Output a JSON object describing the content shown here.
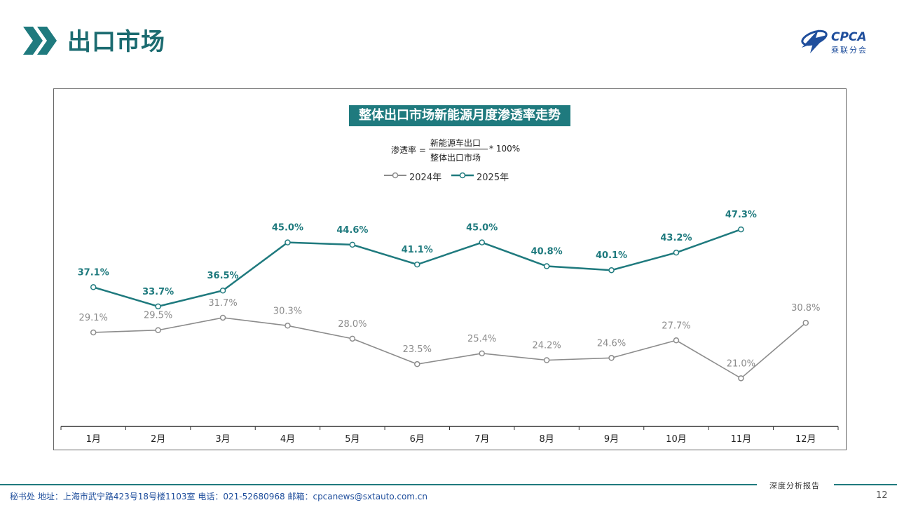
{
  "header": {
    "title": "出口市场"
  },
  "logo": {
    "text": "CPCA",
    "subtitle": "乘联分会"
  },
  "chart_data": {
    "type": "line",
    "title": "整体出口市场新能源月度渗透率走势",
    "formula": {
      "lhs": "渗透率 =",
      "numerator": "新能源车出口",
      "denominator": "整体出口市场",
      "rhs": "* 100%"
    },
    "categories": [
      "1月",
      "2月",
      "3月",
      "4月",
      "5月",
      "6月",
      "7月",
      "8月",
      "9月",
      "10月",
      "11月",
      "12月"
    ],
    "series": [
      {
        "name": "2024年",
        "color": "#8c8c8c",
        "values": [
          29.1,
          29.5,
          31.7,
          30.3,
          28.0,
          23.5,
          25.4,
          24.2,
          24.6,
          27.7,
          21.0,
          30.8
        ],
        "labels": [
          "29.1%",
          "29.5%",
          "31.7%",
          "30.3%",
          "28.0%",
          "23.5%",
          "25.4%",
          "24.2%",
          "24.6%",
          "27.7%",
          "21.0%",
          "30.8%"
        ]
      },
      {
        "name": "2025年",
        "color": "#1f7a7e",
        "values": [
          37.1,
          33.7,
          36.5,
          45.0,
          44.6,
          41.1,
          45.0,
          40.8,
          40.1,
          43.2,
          47.3,
          null
        ],
        "labels": [
          "37.1%",
          "33.7%",
          "36.5%",
          "45.0%",
          "44.6%",
          "41.1%",
          "45.0%",
          "40.8%",
          "40.1%",
          "43.2%",
          "47.3%",
          ""
        ]
      }
    ],
    "legend_position": "top-center",
    "grid": false
  },
  "footer": {
    "report": "深度分析报告",
    "contact": "秘书处   地址：上海市武宁路423号18号楼1103室   电话：021-52680968   邮箱：cpcanews@sxtauto.com.cn",
    "page": "12"
  }
}
